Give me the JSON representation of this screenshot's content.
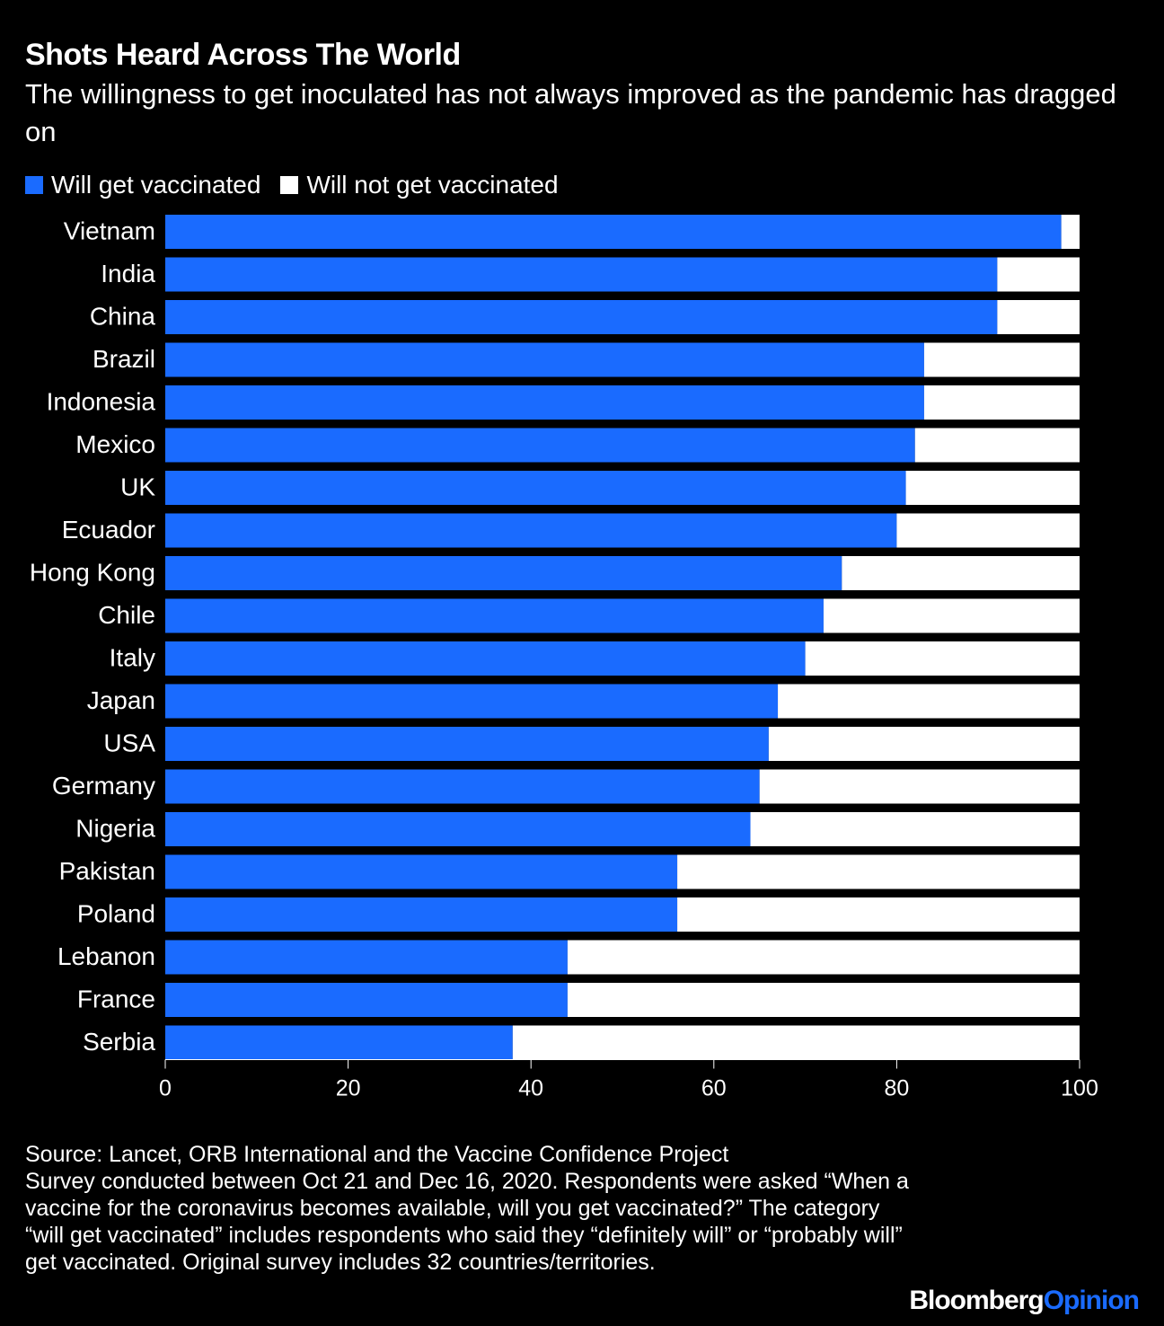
{
  "title": "Shots Heard Across The World",
  "subtitle": "The willingness to get inoculated has not always improved as the pandemic has dragged on",
  "legend": {
    "items": [
      {
        "label": "Will get vaccinated",
        "color": "#1a6bff"
      },
      {
        "label": "Will not get vaccinated",
        "color": "#ffffff"
      }
    ]
  },
  "chart_data": {
    "type": "bar",
    "orientation": "horizontal",
    "stacked": true,
    "categories": [
      "Vietnam",
      "India",
      "China",
      "Brazil",
      "Indonesia",
      "Mexico",
      "UK",
      "Ecuador",
      "Hong Kong",
      "Chile",
      "Italy",
      "Japan",
      "USA",
      "Germany",
      "Nigeria",
      "Pakistan",
      "Poland",
      "Lebanon",
      "France",
      "Serbia"
    ],
    "series": [
      {
        "name": "Will get vaccinated",
        "color": "#1a6bff",
        "values": [
          98,
          91,
          91,
          83,
          83,
          82,
          81,
          80,
          74,
          72,
          70,
          67,
          66,
          65,
          64,
          56,
          56,
          44,
          44,
          38
        ]
      },
      {
        "name": "Will not get vaccinated",
        "color": "#ffffff",
        "values": [
          2,
          9,
          9,
          17,
          17,
          18,
          19,
          20,
          26,
          28,
          30,
          33,
          34,
          35,
          36,
          44,
          44,
          56,
          56,
          62
        ]
      }
    ],
    "xlim": [
      0,
      100
    ],
    "xticks": [
      0,
      20,
      40,
      60,
      80,
      100
    ],
    "grid": false,
    "legend_position": "top-left"
  },
  "source": {
    "lines": [
      "Source: Lancet, ORB International and the Vaccine Confidence Project",
      "Survey conducted between Oct 21 and Dec 16, 2020. Respondents were asked “When a vaccine for the coronavirus becomes available, will you get vaccinated?” The category “will get vaccinated” includes respondents who said they “definitely will” or “probably will” get vaccinated. Original survey includes 32 countries/territories."
    ]
  },
  "brand": {
    "part1": "Bloomberg",
    "part2": "Opinion",
    "part2_color": "#1a6bff"
  }
}
